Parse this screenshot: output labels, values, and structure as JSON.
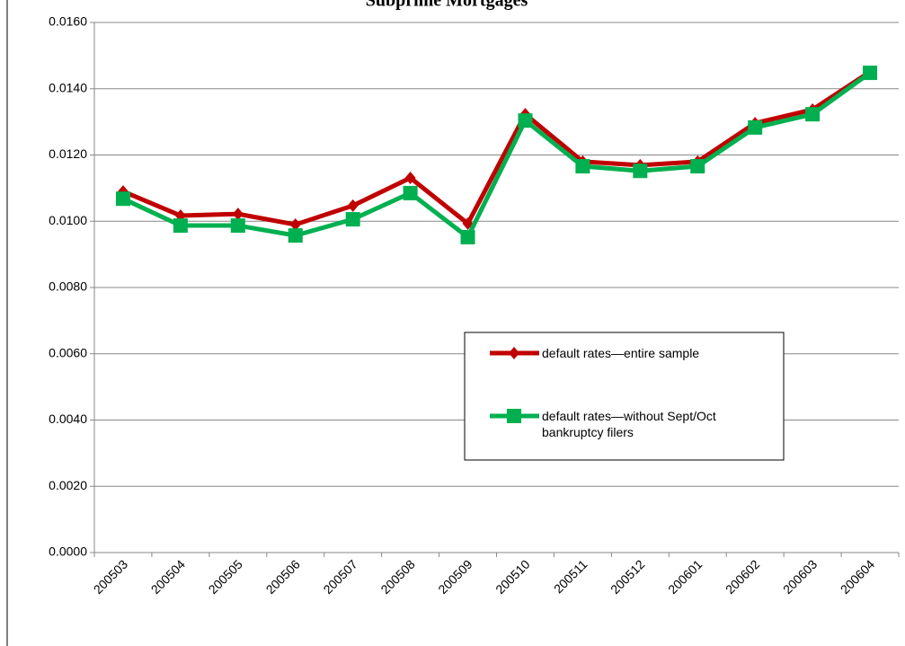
{
  "chart_data": {
    "type": "line",
    "title": "Subprime Mortgages",
    "categories": [
      "200503",
      "200504",
      "200505",
      "200506",
      "200507",
      "200508",
      "200509",
      "200510",
      "200511",
      "200512",
      "200601",
      "200602",
      "200603",
      "200604"
    ],
    "series": [
      {
        "name": "default rates—entire sample",
        "color": "#c00000",
        "values": [
          0.0109,
          0.01017,
          0.01022,
          0.0099,
          0.01047,
          0.01131,
          0.00993,
          0.01323,
          0.0118,
          0.01169,
          0.0118,
          0.01296,
          0.01337,
          0.01451
        ]
      },
      {
        "name": "default rates—without Sept/Oct bankruptcy filers",
        "color": "#00b050",
        "values": [
          0.01068,
          0.00987,
          0.00987,
          0.00957,
          0.01006,
          0.01085,
          0.00952,
          0.01304,
          0.01166,
          0.01152,
          0.01166,
          0.01283,
          0.01323,
          0.01448
        ]
      }
    ],
    "ylim": [
      0,
      0.016
    ],
    "yticks": [
      {
        "value": 0,
        "label": "0.0000"
      },
      {
        "value": 0.002,
        "label": "0.0020"
      },
      {
        "value": 0.004,
        "label": "0.0040"
      },
      {
        "value": 0.006,
        "label": "0.0060"
      },
      {
        "value": 0.008,
        "label": "0.0080"
      },
      {
        "value": 0.01,
        "label": "0.0100"
      },
      {
        "value": 0.012,
        "label": "0.0120"
      },
      {
        "value": 0.014,
        "label": "0.0140"
      },
      {
        "value": 0.016,
        "label": "0.0160"
      }
    ],
    "grid": true
  }
}
